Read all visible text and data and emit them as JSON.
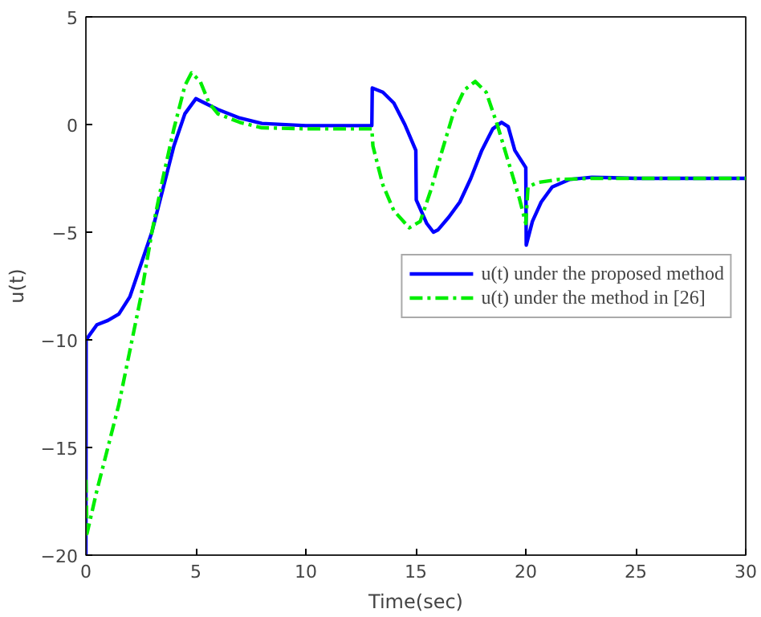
{
  "chart_data": {
    "type": "line",
    "xlabel": "Time(sec)",
    "ylabel": "u(t)",
    "xlim": [
      0,
      30
    ],
    "ylim": [
      -20,
      5
    ],
    "xticks": [
      0,
      5,
      10,
      15,
      20,
      25,
      30
    ],
    "yticks": [
      -20,
      -15,
      -10,
      -5,
      0,
      5
    ],
    "grid": false,
    "legend": "right",
    "marker": "none",
    "series": [
      {
        "name": "u(t) under the proposed method",
        "color": "#0000ff",
        "line_style": "solid",
        "x": [
          0,
          0.01,
          0.5,
          1,
          1.5,
          2,
          2.5,
          3,
          3.5,
          4,
          4.5,
          5,
          6,
          7,
          8,
          10,
          13,
          13.02,
          13.5,
          14,
          14.5,
          15,
          15.02,
          15.5,
          15.8,
          16,
          16.5,
          17,
          17.5,
          18,
          18.5,
          18.9,
          19.2,
          19.5,
          20,
          20.02,
          20.3,
          20.7,
          21.2,
          22,
          23,
          25,
          30
        ],
        "values": [
          -20,
          -10,
          -9.3,
          -9.1,
          -8.8,
          -8,
          -6.5,
          -5,
          -3,
          -1,
          0.5,
          1.2,
          0.7,
          0.3,
          0.05,
          -0.05,
          -0.05,
          1.7,
          1.5,
          1,
          0,
          -1.2,
          -3.5,
          -4.6,
          -5,
          -4.9,
          -4.3,
          -3.6,
          -2.5,
          -1.2,
          -0.2,
          0.1,
          -0.1,
          -1.2,
          -2,
          -5.6,
          -4.5,
          -3.6,
          -2.9,
          -2.55,
          -2.45,
          -2.5,
          -2.5
        ]
      },
      {
        "name": "u(t) under the method in [26]",
        "color": "#00ee00",
        "line_style": "dashdot",
        "x": [
          0,
          0.05,
          0.5,
          1,
          1.5,
          2,
          2.5,
          3,
          3.5,
          4,
          4.5,
          4.8,
          5.2,
          5.6,
          6,
          7,
          8,
          10,
          13,
          13.05,
          13.5,
          14,
          14.7,
          15.2,
          15.7,
          16.2,
          16.7,
          17.2,
          17.7,
          18.2,
          18.7,
          19.2,
          19.7,
          20,
          20.1,
          20.5,
          21.5,
          23,
          30
        ],
        "values": [
          -16.5,
          -19,
          -17,
          -15,
          -13,
          -10.5,
          -8,
          -5,
          -2.5,
          -0.2,
          1.8,
          2.4,
          2,
          1,
          0.5,
          0.1,
          -0.15,
          -0.2,
          -0.2,
          -1,
          -2.8,
          -4,
          -4.8,
          -4.5,
          -3,
          -1.2,
          0.5,
          1.6,
          2,
          1.5,
          0,
          -1.7,
          -3.4,
          -4.6,
          -2.9,
          -2.7,
          -2.55,
          -2.5,
          -2.5
        ]
      }
    ]
  }
}
